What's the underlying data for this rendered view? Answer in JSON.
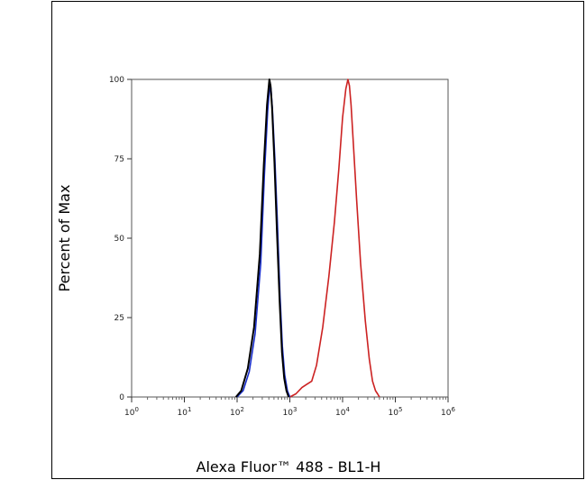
{
  "chart_data": {
    "type": "line",
    "xlabel": "Alexa Fluor™ 488 - BL1-H",
    "ylabel": "Percent of Max",
    "x_scale": "log",
    "xlim": [
      1,
      1000000
    ],
    "ylim": [
      0,
      100
    ],
    "x_ticks": [
      1,
      10,
      100,
      1000,
      10000,
      100000,
      1000000
    ],
    "x_tick_labels": [
      "10^0",
      "10^1",
      "10^2",
      "10^3",
      "10^4",
      "10^5",
      "10^6"
    ],
    "y_ticks": [
      0,
      25,
      50,
      75,
      100
    ],
    "y_tick_labels": [
      "0",
      "25",
      "50",
      "75",
      "100"
    ],
    "grid": false,
    "legend": "none",
    "series": [
      {
        "color": "#cc2222",
        "x": [
          1000,
          1300,
          1700,
          2100,
          2600,
          3200,
          4200,
          5500,
          7000,
          8500,
          10000,
          11500,
          12600,
          13500,
          14500,
          16000,
          18500,
          22000,
          27000,
          32000,
          37000,
          42000,
          46000,
          50000
        ],
        "y": [
          0,
          1,
          3,
          4,
          5,
          10,
          22,
          38,
          55,
          72,
          88,
          97,
          100,
          98,
          92,
          80,
          62,
          42,
          24,
          12,
          5,
          2,
          1,
          0
        ]
      },
      {
        "color": "#1a2fcc",
        "x": [
          100,
          130,
          170,
          220,
          280,
          330,
          380,
          420,
          440,
          470,
          520,
          580,
          650,
          720,
          800,
          900,
          1000
        ],
        "y": [
          0,
          2,
          8,
          20,
          42,
          70,
          90,
          99,
          97,
          90,
          75,
          55,
          32,
          16,
          7,
          2,
          0
        ]
      },
      {
        "color": "#000000",
        "x": [
          95,
          120,
          160,
          210,
          270,
          320,
          370,
          410,
          430,
          460,
          510,
          570,
          640,
          710,
          780,
          860,
          950
        ],
        "y": [
          0,
          2,
          9,
          22,
          45,
          73,
          92,
          100,
          98,
          91,
          74,
          52,
          30,
          14,
          6,
          2,
          0
        ]
      }
    ]
  }
}
